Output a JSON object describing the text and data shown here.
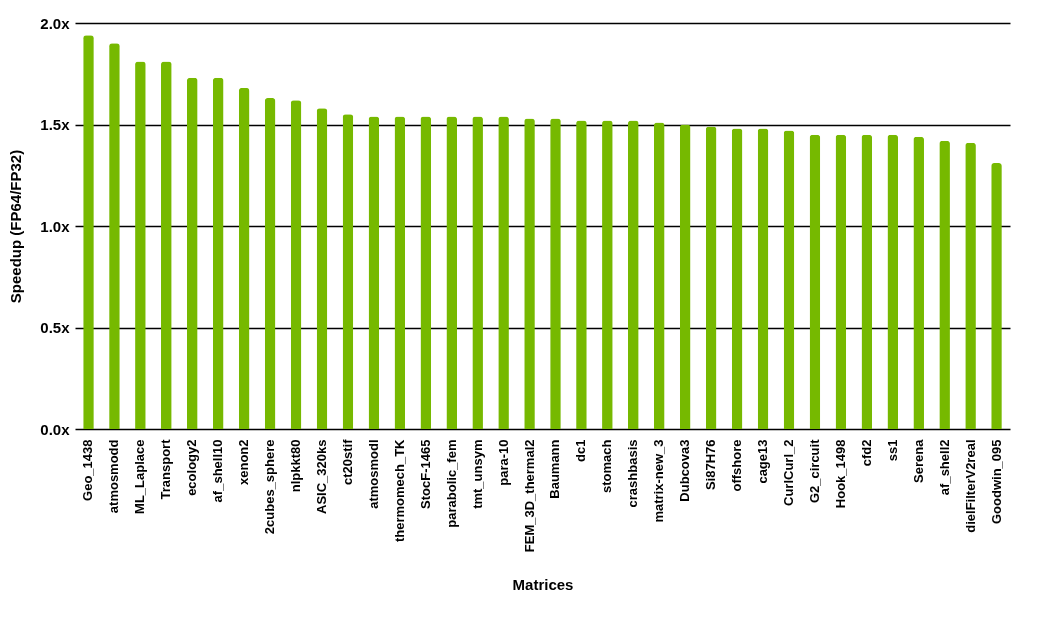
{
  "chart_data": {
    "type": "bar",
    "xlabel": "Matrices",
    "ylabel": "Speedup (FP64/FP32)",
    "categories": [
      "Geo_1438",
      "atmosmodd",
      "ML_Laplace",
      "Transport",
      "ecology2",
      "af_shell10",
      "xenon2",
      "2cubes_sphere",
      "nlpkkt80",
      "ASIC_320ks",
      "ct20stif",
      "atmosmodl",
      "thermomech_TK",
      "StocF-1465",
      "parabolic_fem",
      "tmt_unsym",
      "para-10",
      "FEM_3D_thermal2",
      "Baumann",
      "dc1",
      "stomach",
      "crashbasis",
      "matrix-new_3",
      "Dubcova3",
      "Si87H76",
      "offshore",
      "cage13",
      "CurlCurl_2",
      "G2_circuit",
      "Hook_1498",
      "cfd2",
      "ss1",
      "Serena",
      "af_shell2",
      "dielFilterV2real",
      "Goodwin_095"
    ],
    "values": [
      1.94,
      1.9,
      1.81,
      1.81,
      1.73,
      1.73,
      1.68,
      1.63,
      1.62,
      1.58,
      1.55,
      1.54,
      1.54,
      1.54,
      1.54,
      1.54,
      1.54,
      1.53,
      1.53,
      1.52,
      1.52,
      1.52,
      1.51,
      1.5,
      1.49,
      1.48,
      1.48,
      1.47,
      1.45,
      1.45,
      1.45,
      1.45,
      1.44,
      1.42,
      1.41,
      1.31
    ],
    "color": "#76b900",
    "ylim": [
      0,
      2
    ],
    "yticks": [
      {
        "value": 0,
        "label": "0.0x"
      },
      {
        "value": 0.5,
        "label": "0.5x"
      },
      {
        "value": 1,
        "label": "1.0x"
      },
      {
        "value": 1.5,
        "label": "1.5x"
      },
      {
        "value": 2,
        "label": "2.0x"
      }
    ],
    "grid": "y"
  }
}
